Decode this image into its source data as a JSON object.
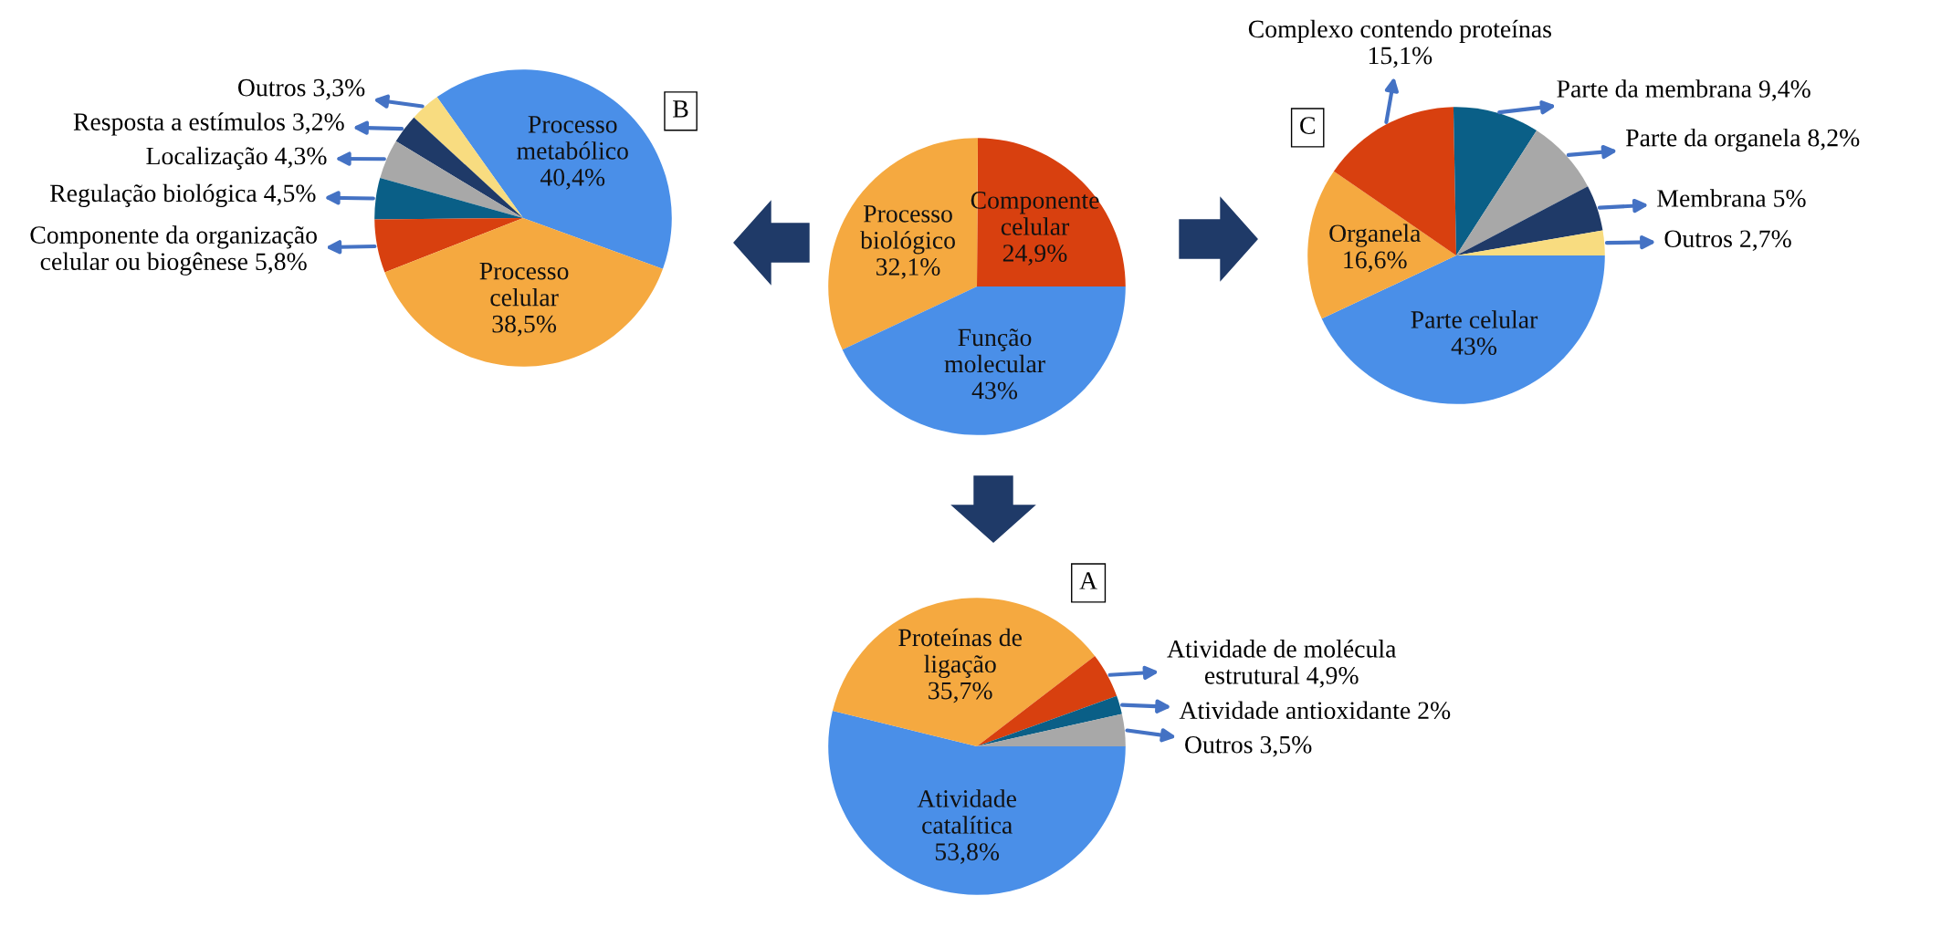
{
  "chart_data": [
    {
      "type": "pie",
      "categories": [
        "Processo metabólico",
        "Outros",
        "Resposta a estímulos",
        "Localização",
        "Regulação biológica",
        "Componente da organização celular ou biogênese",
        "Processo celular"
      ],
      "values": [
        40.4,
        3.3,
        3.2,
        4.3,
        4.5,
        5.8,
        38.5
      ],
      "value_labels": [
        "40,4%",
        "3,3%",
        "3,2%",
        "4,3%",
        "4,5%",
        "5,8%",
        "38,5%"
      ],
      "colors": [
        "#4a8fe8",
        "#f8dc80",
        "#1f3a68",
        "#a8a8a8",
        "#0a5f87",
        "#d8400f",
        "#f5a940"
      ],
      "annotations": [
        "B"
      ]
    },
    {
      "type": "pie",
      "categories": [
        "Componente celular",
        "Processo biológico",
        "Função molecular"
      ],
      "values": [
        24.9,
        32.1,
        43
      ],
      "value_labels": [
        "24,9%",
        "32,1%",
        "43%"
      ],
      "colors": [
        "#d8400f",
        "#f5a940",
        "#4a8fe8"
      ]
    },
    {
      "type": "pie",
      "categories": [
        "Parte celular",
        "Organela",
        "Complexo contendo proteínas",
        "Parte da membrana",
        "Parte da organela",
        "Membrana",
        "Outros"
      ],
      "values": [
        43,
        16.6,
        15.1,
        9.4,
        8.2,
        5,
        2.7
      ],
      "value_labels": [
        "43%",
        "16,6%",
        "15,1%",
        "9,4%",
        "8,2%",
        "5%",
        "2,7%"
      ],
      "colors": [
        "#4a8fe8",
        "#f5a940",
        "#d8400f",
        "#0a5f87",
        "#a8a8a8",
        "#1f3a68",
        "#f8dc80"
      ],
      "annotations": [
        "C"
      ]
    },
    {
      "type": "pie",
      "categories": [
        "Atividade catalítica",
        "Proteínas de ligação",
        "Atividade de molécula estrutural",
        "Atividade antioxidante",
        "Outros"
      ],
      "values": [
        53.8,
        35.7,
        4.9,
        2,
        3.5
      ],
      "value_labels": [
        "53,8%",
        "35,7%",
        "4,9%",
        "2%",
        "3,5%"
      ],
      "colors": [
        "#4a8fe8",
        "#f5a940",
        "#d8400f",
        "#0a5f87",
        "#a8a8a8"
      ],
      "annotations": [
        "A"
      ]
    }
  ]
}
